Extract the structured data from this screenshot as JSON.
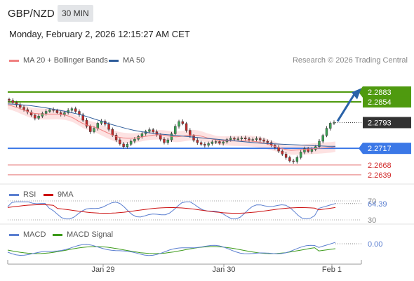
{
  "header": {
    "pair": "GBP/NZD",
    "timeframe": "30 MIN",
    "datetime": "Monday, February 2, 2026 12:15:27 AM CET"
  },
  "legend": {
    "ma20": "MA 20 + Bollinger Bands",
    "ma50": "MA 50",
    "copyright": "Research © 2026 Trading Central",
    "rsi": "RSI",
    "rsi_ma": "9MA",
    "macd": "MACD",
    "macd_signal": "MACD Signal"
  },
  "colors": {
    "ma20": "#f08080",
    "ma50": "#2e5c9a",
    "band": "#fde2e2",
    "resistance": "#4f9a0f",
    "support": "#3b78e7",
    "support_minor": "#e57373",
    "up": "#3aa655",
    "down": "#c62828",
    "rsi": "#5b7fd0",
    "rsi_ma": "#cc1111",
    "macd": "#5b7fd0",
    "macd_signal": "#3c9a1a",
    "arrow": "#2a62a8"
  },
  "chart_data": [
    {
      "type": "candlestick",
      "title": "GBP/NZD",
      "y_range": [
        2.262,
        2.291
      ],
      "x_labels": [
        "Jan 29",
        "Jan 30",
        "Feb 1"
      ],
      "levels": [
        {
          "value": 2.2883,
          "label": "2.2883",
          "kind": "resistance"
        },
        {
          "value": 2.2854,
          "label": "2.2854",
          "kind": "resistance"
        },
        {
          "value": 2.2793,
          "label": "2.2793",
          "kind": "current"
        },
        {
          "value": 2.2717,
          "label": "2.2717",
          "kind": "support"
        },
        {
          "value": 2.2668,
          "label": "2.2668",
          "kind": "support_minor"
        },
        {
          "value": 2.2639,
          "label": "2.2639",
          "kind": "support_minor"
        }
      ],
      "close_series": [
        2.2858,
        2.2852,
        2.2845,
        2.2838,
        2.2831,
        2.2824,
        2.2815,
        2.2806,
        2.2812,
        2.282,
        2.2826,
        2.2831,
        2.2829,
        2.2822,
        2.2817,
        2.2822,
        2.2829,
        2.2834,
        2.2826,
        2.2816,
        2.28,
        2.2782,
        2.2766,
        2.2776,
        2.2791,
        2.2797,
        2.2788,
        2.2773,
        2.2756,
        2.2742,
        2.273,
        2.2722,
        2.2729,
        2.2738,
        2.2744,
        2.2752,
        2.276,
        2.2767,
        2.2772,
        2.2766,
        2.2756,
        2.2744,
        2.2734,
        2.2742,
        2.276,
        2.2782,
        2.2796,
        2.279,
        2.277,
        2.2754,
        2.2741,
        2.2734,
        2.2729,
        2.2726,
        2.2731,
        2.2736,
        2.2737,
        2.2732,
        2.2736,
        2.2743,
        2.2747,
        2.2744,
        2.2745,
        2.2748,
        2.2745,
        2.2742,
        2.2743,
        2.2746,
        2.2742,
        2.2738,
        2.2734,
        2.2726,
        2.272,
        2.2709,
        2.27,
        2.269,
        2.268,
        2.2678,
        2.269,
        2.2706,
        2.2716,
        2.2708,
        2.2714,
        2.2722,
        2.2738,
        2.2755,
        2.2776,
        2.2791,
        2.2793
      ],
      "ma20_series": [
        2.2845,
        2.2842,
        2.2838,
        2.2833,
        2.2828,
        2.2823,
        2.282,
        2.2819,
        2.2818,
        2.2818,
        2.2818,
        2.2818,
        2.2817,
        2.2815,
        2.2811,
        2.2805,
        2.2797,
        2.279,
        2.2785,
        2.2782,
        2.2778,
        2.2772,
        2.2766,
        2.276,
        2.2754,
        2.275,
        2.2748,
        2.2747,
        2.2747,
        2.2748,
        2.275,
        2.2752,
        2.2754,
        2.2756,
        2.2757,
        2.2756,
        2.2754,
        2.2752,
        2.2751,
        2.2752,
        2.2754,
        2.2756,
        2.2756,
        2.2755,
        2.2752,
        2.2748,
        2.2745,
        2.2742,
        2.274,
        2.2739,
        2.2739,
        2.2739,
        2.2739,
        2.2739,
        2.2739,
        2.2738,
        2.2737,
        2.2735,
        2.2732,
        2.2728,
        2.2724,
        2.272,
        2.2716,
        2.2713,
        2.2711,
        2.2712,
        2.2713,
        2.2714,
        2.2715,
        2.2716,
        2.2717,
        2.2718,
        2.2719,
        2.272,
        2.2722
      ],
      "ma50_series": [
        2.2848,
        2.2847,
        2.2845,
        2.2843,
        2.284,
        2.2837,
        2.2833,
        2.2829,
        2.2825,
        2.282,
        2.2815,
        2.2808,
        2.2801,
        2.2794,
        2.2787,
        2.2781,
        2.2775,
        2.277,
        2.2766,
        2.2763,
        2.276,
        2.2758,
        2.2756,
        2.2754,
        2.2752,
        2.275,
        2.2748,
        2.2746,
        2.2744,
        2.2742,
        2.274,
        2.2738,
        2.2736,
        2.2734,
        2.2732,
        2.2731,
        2.273,
        2.2729,
        2.2728,
        2.2727,
        2.2726,
        2.2725,
        2.2724,
        2.2723,
        2.2723
      ],
      "forecast_arrow": {
        "from": 2.2797,
        "to": 2.288
      }
    },
    {
      "type": "line",
      "title": "RSI",
      "y_ticks": [
        "70",
        "64.39",
        "30"
      ],
      "current_value": 64.39
    },
    {
      "type": "line",
      "title": "MACD",
      "current_value": "0.00"
    }
  ]
}
